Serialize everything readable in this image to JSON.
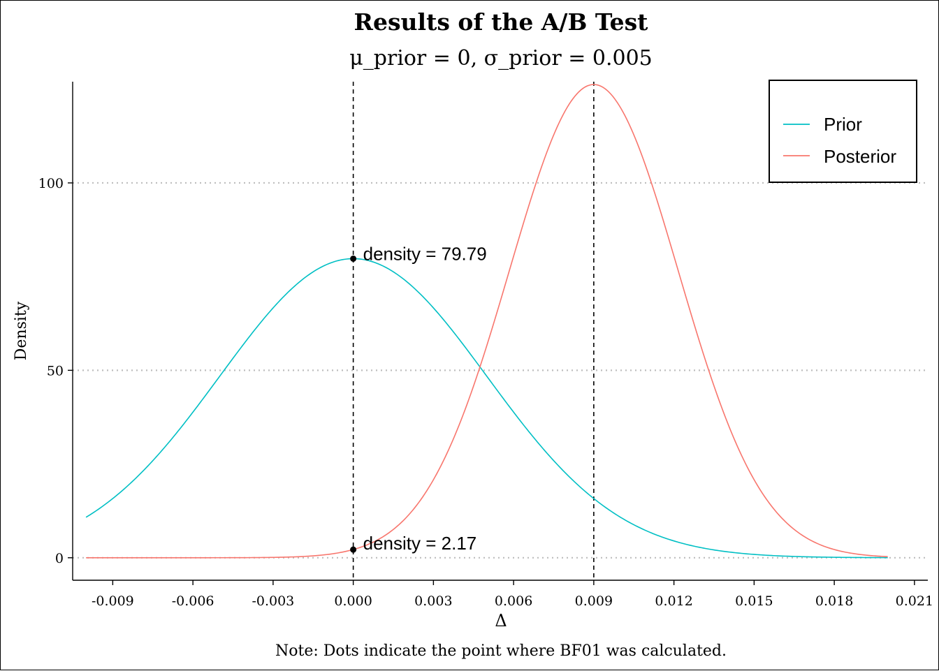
{
  "chart_data": {
    "type": "line",
    "title": "Results of the A/B Test",
    "subtitle": "μ_prior = 0, σ_prior = 0.005",
    "xlabel": "Δ",
    "ylabel": "Density",
    "caption": "Note: Dots indicate the point where BF01 was calculated.",
    "xlim": [
      -0.0105,
      0.0215
    ],
    "ylim": [
      -6,
      127
    ],
    "x_ticks": [
      -0.009,
      -0.006,
      -0.003,
      0.0,
      0.003,
      0.006,
      0.009,
      0.012,
      0.015,
      0.018,
      0.021
    ],
    "x_tick_labels": [
      "-0.009",
      "-0.006",
      "-0.003",
      "0.000",
      "0.003",
      "0.006",
      "0.009",
      "0.012",
      "0.015",
      "0.018",
      "0.021"
    ],
    "y_ticks": [
      0,
      50,
      100
    ],
    "y_tick_labels": [
      "0",
      "50",
      "100"
    ],
    "grid": "horizontal dotted",
    "legend_position": "top-right",
    "series": [
      {
        "name": "Prior",
        "color": "#00BFC4",
        "distribution": "normal",
        "mean": 0.0,
        "sd": 0.005,
        "x_range": [
          -0.01,
          0.02
        ]
      },
      {
        "name": "Posterior",
        "color": "#F8766D",
        "distribution": "normal",
        "mean": 0.009,
        "sd": 0.00316,
        "x_range": [
          -0.01,
          0.02
        ]
      }
    ],
    "vlines": [
      0.0,
      0.009
    ],
    "points": [
      {
        "x": 0.0,
        "y": 79.79,
        "label": "density = 79.79"
      },
      {
        "x": 0.0,
        "y": 2.17,
        "label": "density = 2.17"
      }
    ]
  }
}
